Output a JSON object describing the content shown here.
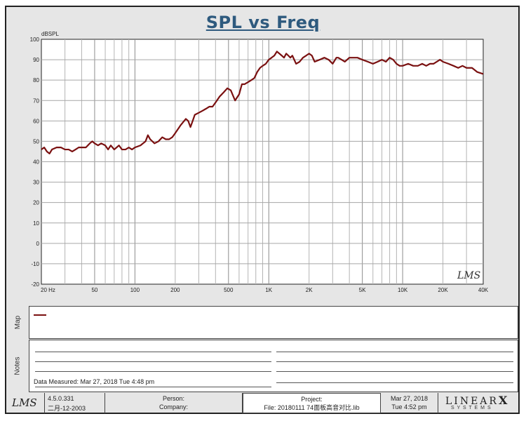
{
  "chart_data": {
    "type": "line",
    "title": "SPL vs Freq",
    "ylabel": "dBSPL",
    "xscale": "log",
    "xlim": [
      20,
      40000
    ],
    "ylim": [
      -20,
      100
    ],
    "grid": true,
    "y_ticks": [
      -20,
      -10,
      0,
      10,
      20,
      30,
      40,
      50,
      60,
      70,
      80,
      90,
      100
    ],
    "y_tick_labels": [
      "-20",
      "-10",
      "0",
      "10",
      "20",
      "30",
      "40",
      "50",
      "60",
      "70",
      "80",
      "90",
      "100"
    ],
    "x_ticks": [
      20,
      50,
      100,
      200,
      500,
      1000,
      2000,
      5000,
      10000,
      20000,
      40000
    ],
    "x_tick_labels": [
      "20 Hz",
      "50",
      "100",
      "200",
      "500",
      "1K",
      "2K",
      "5K",
      "10K",
      "20K",
      "40K"
    ],
    "series_color": "#7a1010",
    "series": [
      {
        "x": [
          20,
          21,
          22,
          23,
          24,
          26,
          28,
          30,
          32,
          34,
          36,
          38,
          40,
          43,
          46,
          48,
          50,
          53,
          56,
          60,
          63,
          66,
          70,
          73,
          76,
          80,
          85,
          90,
          95,
          100,
          110,
          120,
          125,
          130,
          140,
          150,
          160,
          170,
          180,
          190,
          200,
          220,
          240,
          250,
          260,
          270,
          280,
          300,
          320,
          340,
          360,
          380,
          400,
          430,
          460,
          490,
          520,
          560,
          600,
          630,
          660,
          700,
          740,
          780,
          820,
          860,
          900,
          950,
          1000,
          1050,
          1100,
          1150,
          1200,
          1250,
          1300,
          1350,
          1400,
          1450,
          1500,
          1600,
          1700,
          1800,
          1900,
          2000,
          2100,
          2200,
          2400,
          2600,
          2800,
          3000,
          3200,
          3300,
          3500,
          3700,
          4000,
          4300,
          4600,
          5000,
          5500,
          6000,
          6500,
          7000,
          7500,
          8000,
          8500,
          9000,
          9500,
          10000,
          11000,
          12000,
          13000,
          14000,
          15000,
          16000,
          17000,
          18000,
          19000,
          20000,
          22000,
          24000,
          26000,
          28000,
          30000,
          33000,
          36000,
          40000
        ],
        "y": [
          46,
          47,
          45,
          44,
          46,
          47,
          47,
          46,
          46,
          45,
          46,
          47,
          47,
          47,
          49,
          50,
          49,
          48,
          49,
          48,
          46,
          48,
          46,
          47,
          48,
          46,
          46,
          47,
          46,
          47,
          48,
          50,
          53,
          51,
          49,
          50,
          52,
          51,
          51,
          52,
          54,
          58,
          61,
          60,
          57,
          60,
          63,
          64,
          65,
          66,
          67,
          67,
          69,
          72,
          74,
          76,
          75,
          70,
          73,
          78,
          78,
          79,
          80,
          81,
          84,
          86,
          87,
          88,
          90,
          91,
          92,
          94,
          93,
          92,
          91,
          93,
          92,
          91,
          92,
          88,
          89,
          91,
          92,
          93,
          92,
          89,
          90,
          91,
          90,
          88,
          91,
          91,
          90,
          89,
          91,
          91,
          91,
          90,
          89,
          88,
          89,
          90,
          89,
          91,
          90,
          88,
          87,
          87,
          88,
          87,
          87,
          88,
          87,
          88,
          88,
          89,
          90,
          89,
          88,
          87,
          86,
          87,
          86,
          86,
          84,
          83
        ]
      }
    ],
    "watermark": "LMS"
  },
  "map": {
    "label": "Map"
  },
  "notes": {
    "label": "Notes",
    "data_measured": "Data Measured: Mar 27, 2018  Tue  4:48 pm"
  },
  "footer": {
    "logo": "LMS",
    "version": "4.5.0.331",
    "version_date": "二月-12-2003",
    "person_label": "Person:",
    "company_label": "Company:",
    "project_label": "Project:",
    "file_text": "File: 20180111 74面板高音对比.lib",
    "date": "Mar 27, 2018",
    "time": "Tue  4:52 pm",
    "brand_main": "LINEAR",
    "brand_x": "X",
    "brand_sub": "S Y S T E M S"
  }
}
